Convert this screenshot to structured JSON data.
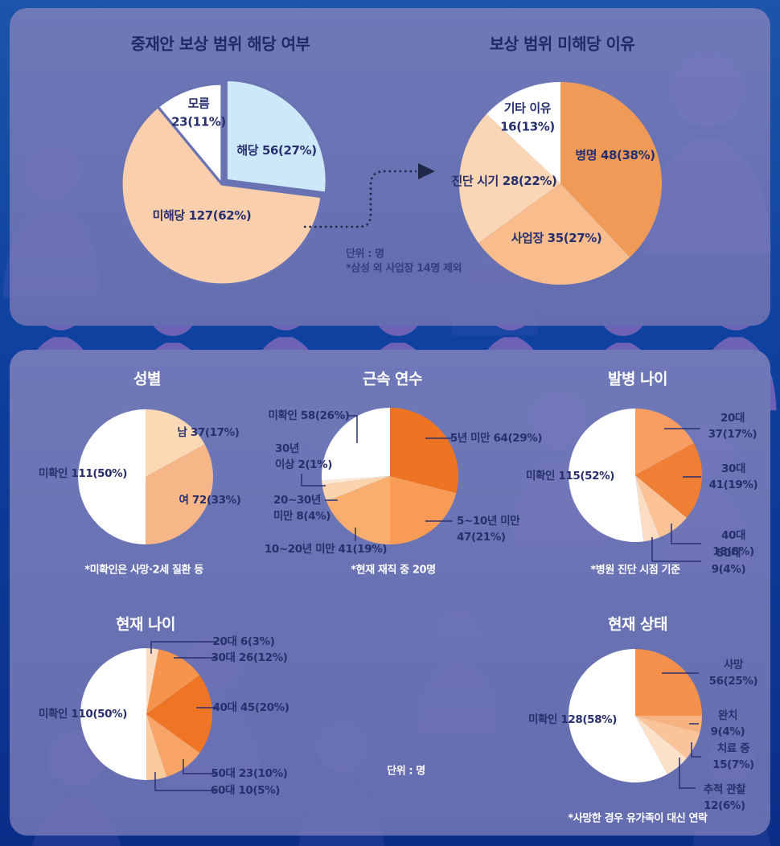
{
  "top_notes": {
    "unit": "단위 : 명",
    "exclusion": "*삼성 외 사업장 14명 제외"
  },
  "bottom_note_unit": "단위 : 명",
  "accent_colors": {
    "background_navy": "#0f41a0",
    "panel_blue": "#6973b4",
    "label_navy": "#272f6d",
    "strong_orange": "#ee7524",
    "light_blue": "#cde8f8"
  },
  "chart_data": [
    {
      "id": "arbitration-coverage",
      "type": "pie",
      "title": "중재안 보상 범위 해당 여부",
      "unit": "명",
      "slices": [
        {
          "label": "해당",
          "value": 56,
          "pct": 27,
          "color": "#cde8f8",
          "display": "해당 56(27%)"
        },
        {
          "label": "미해당",
          "value": 127,
          "pct": 62,
          "color": "#f9cfad",
          "display": "미해당 127(62%)"
        },
        {
          "label": "모름",
          "value": 23,
          "pct": 11,
          "color": "#ffffff",
          "display": "모름\n23(11%)"
        }
      ]
    },
    {
      "id": "non-coverage-reason",
      "type": "pie",
      "title": "보상 범위 미해당 이유",
      "unit": "명",
      "slices": [
        {
          "label": "병명",
          "value": 48,
          "pct": 38,
          "color": "#f09a58",
          "display": "병명 48(38%)"
        },
        {
          "label": "사업장",
          "value": 35,
          "pct": 27,
          "color": "#f8bc8d",
          "display": "사업장 35(27%)"
        },
        {
          "label": "진단 시기",
          "value": 28,
          "pct": 22,
          "color": "#fbd6b5",
          "display": "진단 시기 28(22%)"
        },
        {
          "label": "기타 이유",
          "value": 16,
          "pct": 13,
          "color": "#ffffff",
          "display": "기타 이유\n16(13%)"
        }
      ]
    },
    {
      "id": "gender",
      "type": "pie",
      "title": "성별",
      "footnote": "*미확인은 사망·2세 질환 등",
      "slices": [
        {
          "label": "남",
          "value": 37,
          "pct": 17,
          "color": "#fbd9b5",
          "display": "남 37(17%)"
        },
        {
          "label": "여",
          "value": 72,
          "pct": 33,
          "color": "#f7b687",
          "display": "여 72(33%)"
        },
        {
          "label": "미확인",
          "value": 111,
          "pct": 50,
          "color": "#ffffff",
          "display": "미확인 111(50%)"
        }
      ]
    },
    {
      "id": "tenure",
      "type": "pie",
      "title": "근속 연수",
      "footnote": "*현재 재직 중 20명",
      "slices": [
        {
          "label": "5년 미만",
          "value": 64,
          "pct": 29,
          "color": "#ee7322",
          "display": "5년 미만 64(29%)"
        },
        {
          "label": "5~10년 미만",
          "value": 47,
          "pct": 21,
          "color": "#f79b55",
          "display": "5~10년 미만\n47(21%)"
        },
        {
          "label": "10~20년 미만",
          "value": 41,
          "pct": 19,
          "color": "#f9ad6e",
          "display": "10~20년 미만 41(19%)"
        },
        {
          "label": "20~30년 미만",
          "value": 8,
          "pct": 4,
          "color": "#fbd3ad",
          "display": "20~30년\n미만 8(4%)"
        },
        {
          "label": "30년 이상",
          "value": 2,
          "pct": 1,
          "color": "#fde9d6",
          "display": "30년\n이상 2(1%)"
        },
        {
          "label": "미확인",
          "value": 58,
          "pct": 26,
          "color": "#ffffff",
          "display": "미확인 58(26%)"
        }
      ]
    },
    {
      "id": "onset-age",
      "type": "pie",
      "title": "발병 나이",
      "footnote": "*병원 진단 시점 기준",
      "slices": [
        {
          "label": "20대",
          "value": 37,
          "pct": 17,
          "color": "#f89e63",
          "display": "20대 37(17%)"
        },
        {
          "label": "30대",
          "value": 41,
          "pct": 19,
          "color": "#ef7f35",
          "display": "30대 41(19%)"
        },
        {
          "label": "40대",
          "value": 18,
          "pct": 8,
          "color": "#fbc295",
          "display": "40대 18(8%)"
        },
        {
          "label": "50대",
          "value": 9,
          "pct": 4,
          "color": "#fcdcc2",
          "display": "50대 9(4%)"
        },
        {
          "label": "미확인",
          "value": 115,
          "pct": 52,
          "color": "#ffffff",
          "display": "미확인 115(52%)"
        }
      ]
    },
    {
      "id": "current-age",
      "type": "pie",
      "title": "현재 나이",
      "slices": [
        {
          "label": "20대",
          "value": 6,
          "pct": 3,
          "color": "#fcdcc0",
          "display": "20대 6(3%)"
        },
        {
          "label": "30대",
          "value": 26,
          "pct": 12,
          "color": "#f6934c",
          "display": "30대 26(12%)"
        },
        {
          "label": "40대",
          "value": 45,
          "pct": 20,
          "color": "#ee7524",
          "display": "40대 45(20%)"
        },
        {
          "label": "50대",
          "value": 23,
          "pct": 10,
          "color": "#f7a466",
          "display": "50대 23(10%)"
        },
        {
          "label": "60대",
          "value": 10,
          "pct": 5,
          "color": "#fbcb9e",
          "display": "60대 10(5%)"
        },
        {
          "label": "미확인",
          "value": 110,
          "pct": 50,
          "color": "#ffffff",
          "display": "미확인 110(50%)"
        }
      ]
    },
    {
      "id": "current-status",
      "type": "pie",
      "title": "현재 상태",
      "footnote": "*사망한 경우 유가족이 대신 연락",
      "slices": [
        {
          "label": "사망",
          "value": 56,
          "pct": 25,
          "color": "#f5914c",
          "display": "사망 56(25%)"
        },
        {
          "label": "완치",
          "value": 9,
          "pct": 4,
          "color": "#f8b27e",
          "display": "완치 9(4%)"
        },
        {
          "label": "치료 중",
          "value": 15,
          "pct": 7,
          "color": "#fac498",
          "display": "치료 중 15(7%)"
        },
        {
          "label": "추적 관찰",
          "value": 12,
          "pct": 6,
          "color": "#fde2c9",
          "display": "추적 관찰\n12(6%)"
        },
        {
          "label": "미확인",
          "value": 128,
          "pct": 58,
          "color": "#ffffff",
          "display": "미확인 128(58%)"
        }
      ]
    }
  ]
}
